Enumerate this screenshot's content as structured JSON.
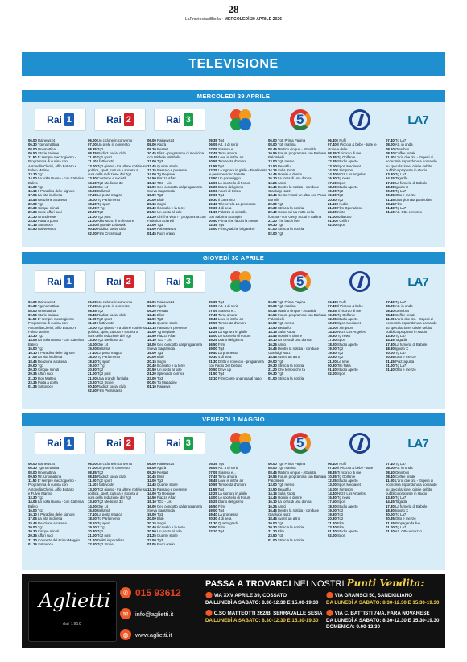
{
  "header": {
    "page_number": "28",
    "meta_prefix": "LaProvinciadiBiella",
    "meta_date": "MERCOLEDÌ 29 APRILE 2026"
  },
  "section_title": "TELEVISIONE",
  "colors": {
    "accent_blue": "#1f8fd0",
    "panel_bg": "#d9edf8",
    "ad_bg": "#111111",
    "ad_orange": "#e8431f",
    "ad_yellow": "#f3d04a"
  },
  "channel_logos": [
    "rai1-logo",
    "rai2-logo",
    "rai3-logo",
    "rete4-logo",
    "canale5-logo",
    "italia1-logo",
    "la7-logo"
  ],
  "days": [
    {
      "title": "MERCOLEDÌ 29 APRILE",
      "channels": [
        [
          "**06.00** Rainews24",
          "**06.30** Tgunomattina",
          "**08.00** Unomattina",
          "**09.50** Storie italiane",
          "**11.50** E' sempre mezzogiorno -",
          "Programma di cucina con",
          "Antonella Clerici, Alfio Bottaro e",
          "Fulvio Marino",
          "**13.30** Tg1",
          "**14.00** La volta Buona - con Caterina",
          "Balivo",
          "**16.00** Tg1",
          "**16.10** Il Paradiso delle signore",
          "**17.05** La vita in diretta",
          "**18.45** Reazione a catena",
          "**20.00** Tg1",
          "**20.30** Cinque minuti",
          "**20.35** Serie affari suoi",
          "**21.30** Grand Hotel",
          "**23.40** Porta a porta",
          "**01.15** Sottovoce",
          "**02.50** RaiNews24"
        ],
        [
          "**06.00** Un ciclone in convento",
          "**07.00** Un prete in convento",
          "**08.35** Tg2",
          "**08.45** Radio2 social club",
          "**11.00** Tg2 sport",
          "**11.10** I fatti vostri",
          "**13.00** Tg2 giorno - tra ultime notizie su",
          "politica, sport, cultura e società a",
          "cura della redazione del Tg2",
          "**13.30** Costume e società",
          "**13.50** Tg2 Medicina 33",
          "**14.00** Ore 14",
          "**15.20** Bellamà",
          "**17.10** La porta magica",
          "**18.00** Tg Parlamento",
          "**18.10** Tg sport",
          "**19.00** 7 Tg",
          "**20.30** Tg2",
          "**21.00** Tg2 post",
          "**21.20** Aldo Moro: il professore",
          "**23.20** Il grande Lebowski",
          "**00.40** Radio2 social club",
          "**02.00** Film Crossroad"
        ],
        [
          "**06.00** Rainews24",
          "**08.00** Agorà",
          "**09.20** Restart",
          "**10.45** Elisir - programma di medicina",
          "con Michele Mirabella",
          "**12.00** Tg3",
          "**12.45** Quante storie",
          "**13.15** Passato e presente",
          "**14.00** Tg Regione",
          "**14.50** Piazza Affari",
          "**15.10** TG3 - Lis",
          "**16.00** Geo condotto dal programma",
          "Sveva Sagramola",
          "**19.00** Tg3",
          "**20.00** Blob",
          "**20.15** Sogni",
          "**20.40** Il cavallo e la torre",
          "**20.50** Un posto al sole",
          "**21.20** Chi l'ha visto? - programma con",
          "Federica Sciarelli",
          "**23.00** Tg3",
          "**01.00** Rai News24",
          "**01.45** Fuori orario"
        ],
        [
          "**05.35** Tg4",
          "**06.05** Art. 4 di seria",
          "**07.05** Stasera e...",
          "**07.45** Terra amara",
          "**08.45** Love is in the air",
          "**10.55** Tempesta d'amore",
          "**11.55** Tg4",
          "**12.25** La signora in giallo - Finalmente",
          "le persone sono tornate",
          "**13.50** Un pomeriggio",
          "**14.00** Lo sportello di Forum",
          "**15.25** Diario del giorno",
          "**16.50** Amori di Cristo",
          "**19.00** Tg4",
          "**19.30** Il cammino",
          "**19.40** Telenovela La promessa",
          "**20.30** 4 di sera",
          "**21.30** Palazzo di cristallo",
          "con Sabrina Scampini",
          "**00.50** Prima che faccia la mente",
          "**02.35** Tg4",
          "**03.00** Film Qualche brigantino"
        ],
        [
          "**06.00** Tg5 Prima Pagina",
          "**08.00** Tg5 mattina",
          "**08.45** Mattino cinque - Attualità",
          "**10.55** Forum programma con Barbara",
          "Palombelli",
          "**13.00** Tg5 meteo",
          "**13.50** Beautiful",
          "**14.15** Sulla Ruota",
          "**14.45** Uomini e donne",
          "**16.10** La forza di una donna",
          "**16.25** Amici",
          "**16.45** Dentro la notizia - conduce",
          "Gianluigi Nuzzi",
          "**18.45** Gente Avanti un altro con Paolo",
          "Bonolis",
          "**20.00** Tg5",
          "**20.30** Striscia la notizia",
          "**20.40** Come sui La notte della",
          "fortuna - con Gerry Scotti e Sabina",
          "**21.20** The batch live",
          "**00.30** Tg5",
          "**01.00** Striscia la notizia",
          "**02.00** Tg5"
        ],
        [
          "**06.40** I Puffi",
          "**07.40** Il Piccolo & bebe - tutte le",
          "storie e delle...",
          "**08.35** Ti ricordo di me",
          "**10.35** Tg Golfante",
          "**12.25** Studio aperto",
          "**13.00** Sport Mediaset",
          "**14.00** I Simpson",
          "**14.40** NCIS Los Angeles",
          "**16.30** Tg news",
          "**17.50** Sport",
          "**18.20** Studio aperto",
          "**19.00** Tg2",
          "**19.30** Tg2",
          "**20.30** Tg2",
          "**21.10** I Kubin",
          "**21.20** Film Operazione",
          "**23.30** Kinto",
          "**01.00** Italia uno",
          "**01.30** I Griffin",
          "**02.00** Sport"
        ],
        [
          "**07.40** Tg La7",
          "**08.00** Att. in onda",
          "**08.10** Omnibus",
          "**08.40** Coffee break",
          "**11.00** L'aria che tira - Esperti di",
          "economia rispondono a domande",
          "su speculazione, crisi e debito",
          "pubblico proposte in studio",
          "**13.30** Tg La7",
          "**14.15** Tagadà",
          "**17.30** La fumeria di Babele",
          "**18.30** Ignoto X",
          "**20.00** Tg La7",
          "**20.35** Otto e mezzo",
          "**21.15** Una giornata particolare",
          "**23.15** Film",
          "**01.40** Tg La7",
          "**01.50** Att. Otto e mezzo"
        ]
      ]
    },
    {
      "title": "GIOVEDÌ 30 APRILE",
      "channels": [
        [
          "**06.00** Rainews24",
          "**06.30** Tgunomattina",
          "**08.00** Unomattina",
          "**09.50** Storie italiane",
          "**11.50** E' sempre mezzogiorno -",
          "Programma di cucina con",
          "Antonella Clerici, Alfio Bottaro e",
          "Fulvio Marino",
          "**13.30** Tg1",
          "**14.05** La volta Buona - con Caterina",
          "Balivo",
          "**16.00** Tg1",
          "**16.10** Il Paradiso delle signore",
          "**17.05** La vita in diretta",
          "**18.45** Reazione a catena",
          "**20.00** Tg1",
          "**20.30** Cinque minuti",
          "**20.35** Affari suoi",
          "**21.30** Don Matteo",
          "**23.35** Porta a porta",
          "**01.35** Sottovoce"
        ],
        [
          "**06.00** Un ciclone in convento",
          "**07.00** Un prete in convento",
          "**08.35** Tg2",
          "**08.45** Radio2 social club",
          "**11.00** Tg2 sport",
          "**11.10** I fatti vostri",
          "**13.00** Tg2 giorno - tra ultime notizie su",
          "politica, sport, cultura e società a",
          "cura della redazione del Tg2",
          "**13.50** Tg2 Medicina 33",
          "**14.00** Ore 14",
          "**15.20** Bellamà",
          "**17.10** La porta magica",
          "**18.00** Tg Parlamento",
          "**18.10** Tg sport",
          "**19.00** 7 Tg",
          "**20.30** Tg2",
          "**21.00** Tg2 post",
          "**21.20** Una grande famiglia",
          "**23.20** Tg2 Storie",
          "**00.40** Radio2 social club",
          "**02.50** Film Pietrasanta"
        ],
        [
          "**06.00** Rainews24",
          "**08.00** Agorà",
          "**09.20** Restart",
          "**10.45** Elisir",
          "**12.00** Tg3",
          "**12.45** Quante storie",
          "**13.15** Passato e presente",
          "**14.00** Tg Regione",
          "**14.50** Piazza Affari",
          "**15.10** TG3 - Lis",
          "**16.00** Geo condotto dal programma",
          "Sveva Sagramola",
          "**19.00** Tg3",
          "**20.00** Blob",
          "**20.15** Sogni",
          "**20.40** Il cavallo e la torre",
          "**20.50** Un posto al sole",
          "**21.20** Splendida cornice",
          "**23.00** Tg3",
          "**00.05** Tg Magazine",
          "**01.10** Rainews"
        ],
        [
          "**05.35** Tg4",
          "**06.05** Art. 4 di seria",
          "**07.05** Stasera e...",
          "**07.45** Terra amara",
          "**08.45** Love is in the air",
          "**10.55** Tempesta d'amore",
          "**11.55** Tg4",
          "**12.25** La signora in giallo",
          "**14.00** Lo sportello di Forum",
          "**15.25** Diario del giorno",
          "**16.50** Film",
          "**19.00** Tg4",
          "**19.40** La promessa",
          "**20.30** 4 di sera",
          "**21.30** Dritto e rovescio - programma",
          "con Paolo Del Debbio",
          "**00.50** Drive up",
          "**01.50** Tg4",
          "**02.10** Film Come una rosa al naso"
        ],
        [
          "**06.00** Tg5 Prima Pagina",
          "**08.00** Tg5 mattina",
          "**08.45** Mattino cinque - Attualità",
          "**10.55** Forum programma con Barbara",
          "Palombelli",
          "**13.00** Tg5 meteo",
          "**13.50** Beautiful",
          "**14.15** Sulla Ruota",
          "**14.45** Uomini e donne",
          "**16.10** La forza di una donna",
          "**16.25** Amici",
          "**16.45** Dentro la notizia - conduce",
          "Gianluigi Nuzzi",
          "**18.45** Avanti un altro",
          "**20.00** Tg5",
          "**20.30** Striscia la notizia",
          "**21.20** Che tempo che fa",
          "**00.30** Tg5",
          "**01.00** Striscia la notizia"
        ],
        [
          "**06.40** I Puffi",
          "**07.40** Il Piccolo & bebe",
          "**08.35** Ti ricordo di me",
          "**10.35** Tg Golfante",
          "**12.25** Studio aperto",
          "**13.00** Sport Mediaset",
          "**14.00** I Simpson",
          "**14.40** NCIS Los Angeles",
          "**16.30** Tg news",
          "**17.50** Sport",
          "**18.20** Studio aperto",
          "**19.00** Tg2",
          "**19.30** Tg2",
          "**20.30** Tg2",
          "**21.20** Le Iene",
          "**00.30** Tiki Taka",
          "**01.10** Studio aperto",
          "**02.00** Sport"
        ],
        [
          "**07.40** Tg La7",
          "**08.00** Att. in onda",
          "**08.10** Omnibus",
          "**08.40** Coffee break",
          "**11.00** L'aria che tira - Esperti di",
          "economia rispondono a domande",
          "su speculazione, crisi e debito",
          "pubblico proposte in studio",
          "**13.30** Tg La7",
          "**14.15** Tagadà",
          "**17.30** La fumeria di Babele",
          "**18.30** Ignoto X",
          "**20.00** Tg La7",
          "**20.35** Otto e mezzo",
          "**21.15** Piazzapulita",
          "**01.00** Tg La7",
          "**01.10** Otto e mezzo"
        ]
      ]
    },
    {
      "title": "VENERDÌ 1 MAGGIO",
      "channels": [
        [
          "**06.00** Rainews24",
          "**06.30** Tgunomattina",
          "**08.00** Unomattina",
          "**09.50** Mr. Unomattina",
          "**11.50** E' sempre mezzogiorno -",
          "Programma di cucina con",
          "Antonella Clerici, Alfio Bottaro",
          "e Fulvio Marino",
          "**13.30** Tg1",
          "**14.05** La volta Buona - con Caterina",
          "Balivo",
          "**16.00** Tg1",
          "**16.10** Il Paradiso delle signore",
          "**17.05** La vita in diretta",
          "**18.45** Reazione a catena",
          "**20.00** Tg1",
          "**20.30** Cinque minuti",
          "**20.35** Affari suoi",
          "**21.30** Concerto del Primo Maggio",
          "**01.15** Sottovoce"
        ],
        [
          "**06.00** Un ciclone in convento",
          "**07.00** Un prete in convento",
          "**08.35** Tg2",
          "**08.45** Radio2 social club",
          "**11.00** Tg2 sport",
          "**11.10** I fatti vostri",
          "**13.00** Tg2 giorno - tra ultime notizie su",
          "politica, sport, cultura e società a",
          "cura della redazione del Tg2",
          "**13.50** Tg2 Medicina 33",
          "**14.00** Ore 14",
          "**15.20** Bellamà",
          "**17.10** La porta magica",
          "**18.00** Tg Parlamento",
          "**18.10** Tg sport",
          "**19.00** 7 Tg",
          "**20.30** Tg2",
          "**21.00** Tg2 post",
          "**21.20** Delitti in paradiso",
          "**22.20** Tg2 Storie"
        ],
        [
          "**06.00** Rainews24",
          "**08.00** Agorà",
          "**09.20** Restart",
          "**10.45** Elisir",
          "**12.00** Tg3",
          "**12.45** Quante storie",
          "**13.15** Passato e presente",
          "**14.00** Tg Regione",
          "**14.50** Piazza Affari",
          "**15.10** TG3 - Lis",
          "**16.00** Geo condotto dal programma",
          "Sveva Sagramola",
          "**19.00** Tg3",
          "**20.00** Blob",
          "**20.15** Sogni",
          "**20.40** Il cavallo e la torre",
          "**20.50** Un posto al sole",
          "**21.25** Quante storie",
          "**23.00** Tg3",
          "**01.05** Fuori orario"
        ],
        [
          "**05.35** Tg4",
          "**06.05** Art. 4 di seria",
          "**07.05** Stasera e...",
          "**07.45** Terra amara",
          "**08.45** Love is in the air",
          "**10.55** Tempesta d'amore",
          "**11.55** Tg4",
          "**12.25** La signora in giallo",
          "**14.00** Lo sportello di Forum",
          "**15.25** Diario del giorno",
          "**16.50** Film",
          "**19.00** Tg4",
          "**19.40** La promessa",
          "**20.30** 4 di sera",
          "**21.30** Quarto grado",
          "**00.50** Film",
          "**02.10** Tg4"
        ],
        [
          "**06.00** Tg5 Prima Pagina",
          "**08.00** Tg5 mattina",
          "**08.45** Mattino cinque - Attualità",
          "**10.55** Forum programma con Barbara",
          "Palombelli",
          "**13.00** Tg5 meteo",
          "**13.50** Beautiful",
          "**14.15** Sulla Ruota",
          "**14.45** Uomini e donne",
          "**16.10** La forza di una donna",
          "**16.25** Amici",
          "**16.45** Dentro la notizia - conduce",
          "Gianluigi Nuzzi",
          "**18.45** Avanti un altro",
          "**20.00** Tg5",
          "**20.30** Striscia la notizia",
          "**21.20** Film",
          "**23.50** Tg5",
          "**01.00** Striscia la notizia"
        ],
        [
          "**06.40** I Puffi",
          "**07.40** Il Piccolo & bebe - tutte",
          "**08.35** Ti ricordo di me",
          "**10.35** Tg Golfante",
          "**12.25** Studio aperto",
          "**13.00** Sport Mediaset",
          "**14.00** I Simpson",
          "**14.40** NCIS Los Angeles",
          "**16.30** Tg news",
          "**17.50** Sport",
          "**18.20** Studio aperto",
          "**19.00** Tg2",
          "**19.30** Tg2",
          "**20.30** Tg2",
          "**21.20** Film",
          "**23.40** Film",
          "**01.40** Studio aperto",
          "**02.00** Sport"
        ],
        [
          "**07.40** Tg La7",
          "**08.00** Att. in onda",
          "**08.10** Omnibus",
          "**08.40** Coffee break",
          "**11.00** L'aria che tira - Esperti di",
          "economia rispondono a domande",
          "su speculazione, crisi e debito",
          "pubblico proposte in studio",
          "**13.30** Tg La7",
          "**14.15** Tagadà",
          "**17.30** La fumeria di Babele",
          "**18.30** Ignoto X",
          "**20.00** Tg La7",
          "**20.35** Otto e mezzo",
          "**21.15** Propaganda live",
          "**01.00** Tg La7",
          "**01.10** Att. Otto e mezzo"
        ]
      ]
    }
  ],
  "ad": {
    "brand": "Aglietti",
    "since": "dal 1910",
    "phone": "015 93612",
    "email": "info@aglietti.it",
    "website": "www.aglietti.it",
    "headline_bold": "PASSA A TROVARCI",
    "headline_thin": "NEI NOSTRI",
    "headline_script": "Punti Vendita:",
    "stores": [
      {
        "address": "VIA XXV APRILE 39, COSSATO",
        "hours": "DA LUNEDÌ A SABATO: 8.30-12.30 E 15.00-19.30"
      },
      {
        "address": "C.SO MATTEOTTI 262/B, SERRAVALLE SESIA",
        "hours": "DA LUNEDÌ A SABATO: 8.30-12.30 E 15.30-19.30"
      },
      {
        "address": "VIA GRAMSCI 50, SANDIGLIANO",
        "hours": "DA LUNEDÌ A SABATO: 8.30-12.30 E 15.30-19.30"
      },
      {
        "address": "VIA C. BATTISTI 74/A, FARA NOVARESE",
        "hours": "DA LUNEDÌ A SABATO: 8.30-12.30 E 15.30-19.30",
        "extra": "DOMENICA: 9.00-12.30"
      }
    ]
  }
}
